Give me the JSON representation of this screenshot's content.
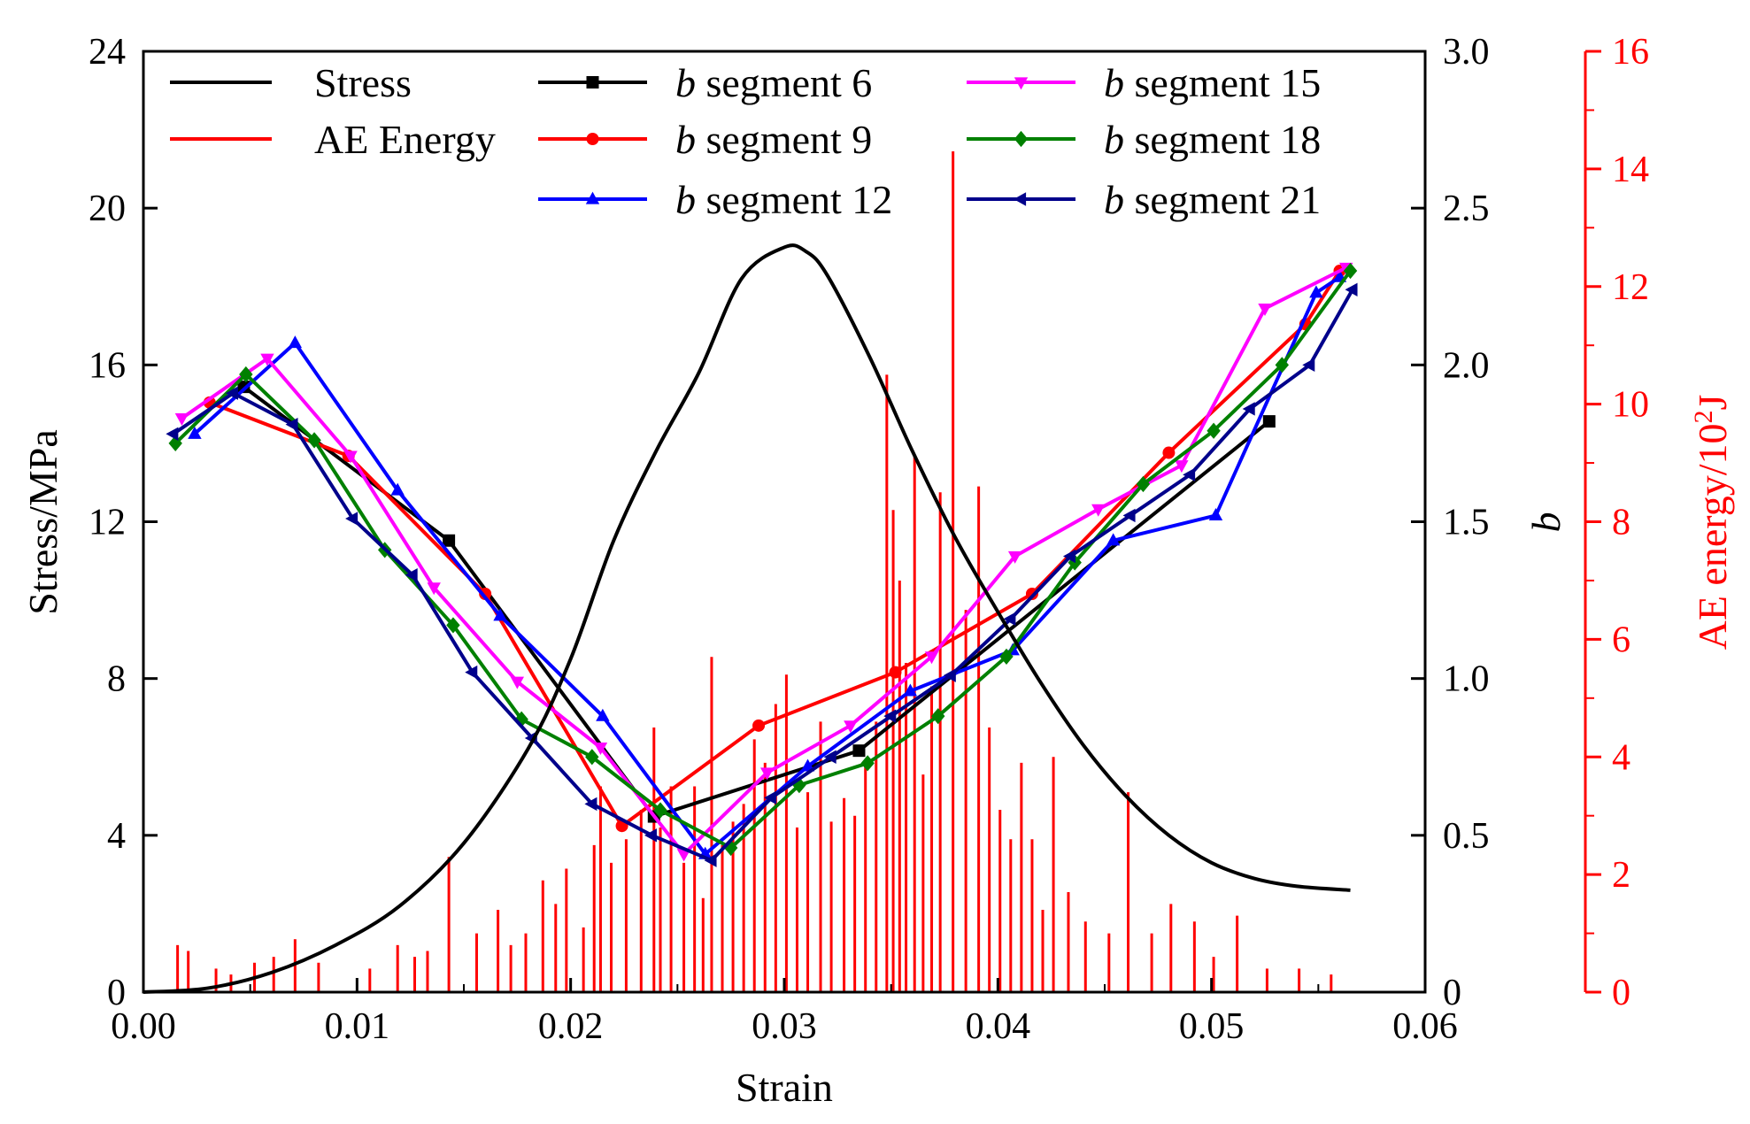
{
  "chart_data": {
    "type": "line",
    "xlabel": "Strain",
    "x_ticks": [
      "0.00",
      "0.01",
      "0.02",
      "0.03",
      "0.04",
      "0.05",
      "0.06"
    ],
    "xlim": [
      0,
      0.06
    ],
    "axes": {
      "stress": {
        "label": "Stress/MPa",
        "ylim": [
          0,
          24
        ],
        "ticks": [
          "0",
          "4",
          "8",
          "12",
          "16",
          "20",
          "24"
        ],
        "color": "#000000"
      },
      "b": {
        "label": "b",
        "ylim": [
          0,
          3.0
        ],
        "ticks": [
          "0",
          "0.5",
          "1.0",
          "1.5",
          "2.0",
          "2.5",
          "3.0"
        ],
        "color": "#000000"
      },
      "ae": {
        "label_prefix": "AE energy/10",
        "label_sup": "2",
        "label_suffix": "J",
        "ylim": [
          0,
          16
        ],
        "ticks": [
          "0",
          "2",
          "4",
          "6",
          "8",
          "10",
          "12",
          "14",
          "16"
        ],
        "color": "#ff0000"
      }
    },
    "legend": [
      {
        "text": "Stress",
        "italic_prefix": "",
        "color": "#000000",
        "marker": "none"
      },
      {
        "text": "AE Energy",
        "italic_prefix": "",
        "color": "#ff0000",
        "marker": "none"
      },
      {
        "text": " segment 6",
        "italic_prefix": "b",
        "color": "#000000",
        "marker": "square"
      },
      {
        "text": " segment 9",
        "italic_prefix": "b",
        "color": "#ff0000",
        "marker": "circle"
      },
      {
        "text": " segment 12",
        "italic_prefix": "b",
        "color": "#0000ff",
        "marker": "triangle-up"
      },
      {
        "text": " segment 15",
        "italic_prefix": "b",
        "color": "#ff00ff",
        "marker": "triangle-down"
      },
      {
        "text": " segment 18",
        "italic_prefix": "b",
        "color": "#008000",
        "marker": "diamond"
      },
      {
        "text": " segment 21",
        "italic_prefix": "b",
        "color": "#00008b",
        "marker": "triangle-left"
      }
    ],
    "stress": {
      "color": "#000000",
      "x": [
        0.0,
        0.003,
        0.006,
        0.009,
        0.012,
        0.015,
        0.018,
        0.02,
        0.022,
        0.024,
        0.026,
        0.028,
        0.03,
        0.031,
        0.032,
        0.034,
        0.036,
        0.038,
        0.04,
        0.042,
        0.044,
        0.046,
        0.048,
        0.05,
        0.052,
        0.054,
        0.0565
      ],
      "y": [
        0.0,
        0.1,
        0.5,
        1.2,
        2.2,
        3.8,
        6.2,
        8.5,
        11.5,
        13.8,
        15.8,
        18.2,
        19.0,
        18.9,
        18.3,
        16.2,
        13.8,
        11.6,
        9.7,
        7.9,
        6.3,
        5.0,
        4.0,
        3.3,
        2.9,
        2.7,
        2.6
      ]
    },
    "ae_energy": {
      "color": "#ff0000",
      "x": [
        0.0016,
        0.0021,
        0.0034,
        0.0041,
        0.0052,
        0.0061,
        0.0071,
        0.0082,
        0.0106,
        0.0119,
        0.0127,
        0.0133,
        0.0143,
        0.0156,
        0.0166,
        0.0172,
        0.0179,
        0.0187,
        0.0193,
        0.0198,
        0.0206,
        0.0211,
        0.0214,
        0.0219,
        0.0226,
        0.0233,
        0.0239,
        0.0242,
        0.0247,
        0.0253,
        0.0258,
        0.0262,
        0.0266,
        0.0271,
        0.0276,
        0.0281,
        0.0286,
        0.0291,
        0.0296,
        0.0301,
        0.0306,
        0.0311,
        0.0317,
        0.0322,
        0.0328,
        0.0333,
        0.0338,
        0.0343,
        0.0348,
        0.0351,
        0.0354,
        0.0357,
        0.0361,
        0.0365,
        0.0369,
        0.0373,
        0.0379,
        0.0385,
        0.0391,
        0.0396,
        0.0401,
        0.0406,
        0.0411,
        0.0416,
        0.0421,
        0.0426,
        0.0433,
        0.0441,
        0.0452,
        0.0461,
        0.0472,
        0.0481,
        0.0492,
        0.0501,
        0.0512,
        0.0526,
        0.0541,
        0.0556
      ],
      "y": [
        0.8,
        0.7,
        0.4,
        0.3,
        0.5,
        0.6,
        0.9,
        0.5,
        0.4,
        0.8,
        0.6,
        0.7,
        2.3,
        1.0,
        1.4,
        0.8,
        1.0,
        1.9,
        1.5,
        2.1,
        1.1,
        2.5,
        3.5,
        2.2,
        2.6,
        3.1,
        4.5,
        2.8,
        3.5,
        2.2,
        3.5,
        1.6,
        5.7,
        2.5,
        2.9,
        3.2,
        4.3,
        3.9,
        4.9,
        5.4,
        2.8,
        3.4,
        4.6,
        2.9,
        3.3,
        3.0,
        3.9,
        4.6,
        10.5,
        8.2,
        7.0,
        5.6,
        9.1,
        3.7,
        5.2,
        8.5,
        14.3,
        6.5,
        8.6,
        4.5,
        3.1,
        2.6,
        3.9,
        2.6,
        1.4,
        4.0,
        1.7,
        1.2,
        1.0,
        3.4,
        1.0,
        1.5,
        1.2,
        0.6,
        1.3,
        0.4,
        0.4,
        0.3
      ]
    },
    "series": [
      {
        "name": "b segment 6",
        "color": "#000000",
        "marker": "square",
        "x": [
          0.0047,
          0.0143,
          0.0239,
          0.0335,
          0.0527
        ],
        "y": [
          1.93,
          1.44,
          0.56,
          0.77,
          1.82
        ]
      },
      {
        "name": "b segment 9",
        "color": "#ff0000",
        "marker": "circle",
        "x": [
          0.0031,
          0.0096,
          0.016,
          0.0224,
          0.0288,
          0.0352,
          0.0416,
          0.048,
          0.0544,
          0.056
        ],
        "y": [
          1.88,
          1.71,
          1.27,
          0.53,
          0.85,
          1.02,
          1.27,
          1.72,
          2.13,
          2.3
        ]
      },
      {
        "name": "b segment 12",
        "color": "#0000ff",
        "marker": "triangle-up",
        "x": [
          0.0024,
          0.0071,
          0.0119,
          0.0167,
          0.0215,
          0.0263,
          0.0311,
          0.0359,
          0.0407,
          0.0454,
          0.0502,
          0.0549,
          0.056
        ],
        "y": [
          1.78,
          2.07,
          1.6,
          1.2,
          0.88,
          0.44,
          0.72,
          0.96,
          1.09,
          1.44,
          1.52,
          2.23,
          2.28
        ]
      },
      {
        "name": "b segment 15",
        "color": "#ff00ff",
        "marker": "triangle-down",
        "x": [
          0.0018,
          0.0058,
          0.0097,
          0.0136,
          0.0175,
          0.0214,
          0.0253,
          0.0292,
          0.0331,
          0.0369,
          0.0408,
          0.0447,
          0.0486,
          0.0525,
          0.0563
        ],
        "y": [
          1.83,
          2.02,
          1.71,
          1.29,
          0.99,
          0.78,
          0.44,
          0.7,
          0.85,
          1.07,
          1.39,
          1.54,
          1.68,
          2.18,
          2.31
        ]
      },
      {
        "name": "b segment 18",
        "color": "#008000",
        "marker": "diamond",
        "x": [
          0.0015,
          0.0048,
          0.008,
          0.0113,
          0.0145,
          0.0177,
          0.021,
          0.0242,
          0.0275,
          0.0307,
          0.0339,
          0.0372,
          0.0404,
          0.0436,
          0.0468,
          0.0501,
          0.0533,
          0.0565
        ],
        "y": [
          1.75,
          1.97,
          1.76,
          1.41,
          1.17,
          0.87,
          0.75,
          0.58,
          0.46,
          0.66,
          0.73,
          0.88,
          1.07,
          1.37,
          1.62,
          1.79,
          2.0,
          2.3
        ]
      },
      {
        "name": "b segment 21",
        "color": "#00008b",
        "marker": "triangle-left",
        "x": [
          0.0014,
          0.0042,
          0.007,
          0.0098,
          0.0126,
          0.0154,
          0.0182,
          0.021,
          0.0238,
          0.0266,
          0.0294,
          0.0322,
          0.035,
          0.0378,
          0.0406,
          0.0434,
          0.0462,
          0.049,
          0.0518,
          0.0546,
          0.0566
        ],
        "y": [
          1.78,
          1.91,
          1.81,
          1.51,
          1.33,
          1.02,
          0.81,
          0.6,
          0.5,
          0.42,
          0.62,
          0.75,
          0.88,
          1.01,
          1.19,
          1.39,
          1.52,
          1.65,
          1.86,
          2.0,
          2.24
        ]
      }
    ]
  }
}
